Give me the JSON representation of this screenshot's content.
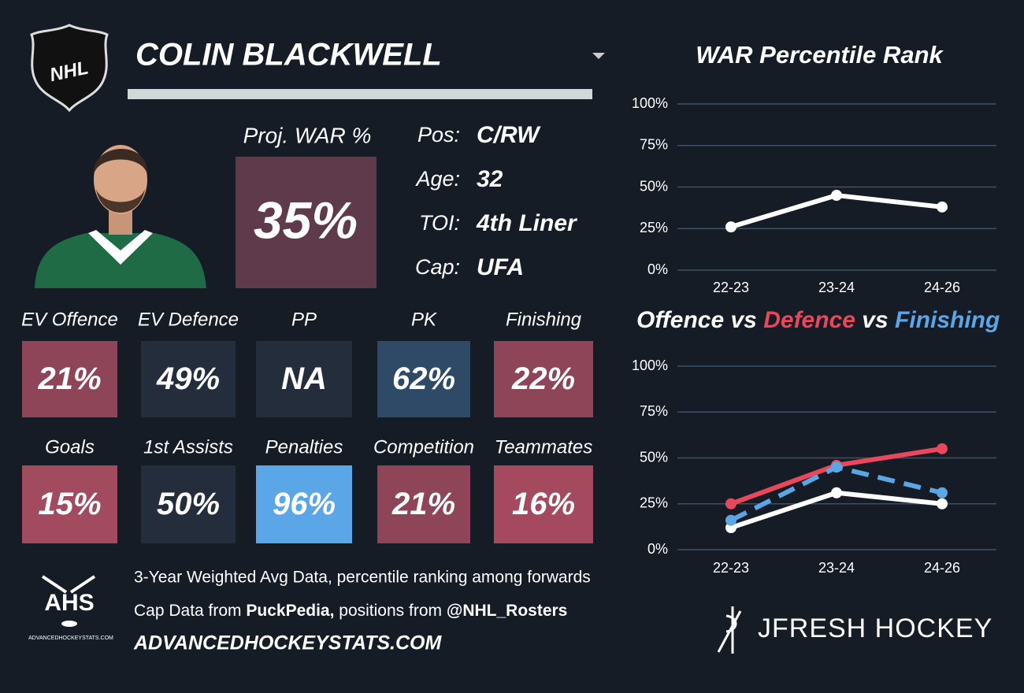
{
  "header": {
    "logo_text": "NHL",
    "player_name": "COLIN BLACKWELL"
  },
  "projection": {
    "label": "Proj. WAR %",
    "value": "35%",
    "color": "#5e3a4b"
  },
  "info": [
    {
      "label": "Pos:",
      "value": "C/RW"
    },
    {
      "label": "Age:",
      "value": "32"
    },
    {
      "label": "TOI:",
      "value": "4th Liner"
    },
    {
      "label": "Cap:",
      "value": "UFA"
    }
  ],
  "tiles": [
    {
      "label": "EV Offence",
      "value": "21%",
      "color": "#8e4558"
    },
    {
      "label": "EV Defence",
      "value": "49%",
      "color": "#232d3b"
    },
    {
      "label": "PP",
      "value": "NA",
      "color": "#232d3b"
    },
    {
      "label": "PK",
      "value": "62%",
      "color": "#2e4a66"
    },
    {
      "label": "Finishing",
      "value": "22%",
      "color": "#8e4558"
    },
    {
      "label": "Goals",
      "value": "15%",
      "color": "#a24a5e"
    },
    {
      "label": "1st Assists",
      "value": "50%",
      "color": "#232d3b"
    },
    {
      "label": "Penalties",
      "value": "96%",
      "color": "#5aa6e6"
    },
    {
      "label": "Competition",
      "value": "21%",
      "color": "#8e4558"
    },
    {
      "label": "Teammates",
      "value": "16%",
      "color": "#a54a5e"
    }
  ],
  "footer": {
    "logo_text": "AHS",
    "logo_caption": "ADVANCEDHOCKEYSTATS.COM",
    "line1": "3-Year Weighted Avg Data, percentile ranking among forwards",
    "line2_parts": [
      "Cap Data from ",
      "PuckPedia,",
      " positions from ",
      "@NHL_Rosters"
    ],
    "site": "ADVANCEDHOCKEYSTATS.COM",
    "brand": "JFRESH HOCKEY"
  },
  "chart_data": [
    {
      "type": "line",
      "title": "WAR Percentile Rank",
      "categories": [
        "22-23",
        "23-24",
        "24-26"
      ],
      "series": [
        {
          "name": "WAR",
          "color": "#ffffff",
          "values": [
            26,
            45,
            38
          ]
        }
      ],
      "ylim": [
        0,
        100
      ],
      "yticks": [
        {
          "value": 0,
          "label": "0%"
        },
        {
          "value": 25,
          "label": "25%"
        },
        {
          "value": 50,
          "label": "50%"
        },
        {
          "value": 75,
          "label": "75%"
        },
        {
          "value": 100,
          "label": "100%"
        }
      ],
      "grid": true
    },
    {
      "type": "line",
      "title_separator": "vs",
      "categories": [
        "22-23",
        "23-24",
        "24-26"
      ],
      "series": [
        {
          "name": "Offence",
          "color": "#ffffff",
          "values": [
            12,
            31,
            25
          ]
        },
        {
          "name": "Defence",
          "color": "#e8475c",
          "values": [
            25,
            46,
            55
          ]
        },
        {
          "name": "Finishing",
          "color": "#5aa6e6",
          "dashed": true,
          "values": [
            16,
            45,
            31
          ]
        }
      ],
      "ylim": [
        0,
        100
      ],
      "yticks": [
        {
          "value": 0,
          "label": "0%"
        },
        {
          "value": 25,
          "label": "25%"
        },
        {
          "value": 50,
          "label": "50%"
        },
        {
          "value": 75,
          "label": "75%"
        },
        {
          "value": 100,
          "label": "100%"
        }
      ],
      "grid": true
    }
  ]
}
